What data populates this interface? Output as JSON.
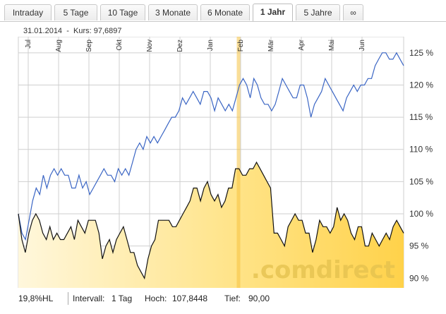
{
  "tabs": [
    {
      "label": "Intraday",
      "active": false
    },
    {
      "label": "5 Tage",
      "active": false
    },
    {
      "label": "10 Tage",
      "active": false
    },
    {
      "label": "3 Monate",
      "active": false
    },
    {
      "label": "6 Monate",
      "active": false
    },
    {
      "label": "1 Jahr",
      "active": true
    },
    {
      "label": "5 Jahre",
      "active": false
    },
    {
      "label": "∞",
      "active": false
    }
  ],
  "info": {
    "date": "31.01.2014",
    "separator": "-",
    "price_label": "Kurs:",
    "price_value": "97,6897"
  },
  "footer": {
    "hl": "19,8%HL",
    "interval_label": "Intervall:",
    "interval_value": "1 Tag",
    "high_label": "Hoch:",
    "high_value": "107,8448",
    "low_label": "Tief:",
    "low_value": "90,00"
  },
  "watermark": ".comdirect",
  "colors": {
    "blue_line": "#3a65c4",
    "black_line": "#111111",
    "fill_light": "#fff6d8",
    "fill_dark": "#ffd24a",
    "highlight_bar": "#f5c242",
    "grid": "#cfcfcf",
    "watermark": "#e3c04d"
  },
  "chart_data": {
    "type": "line",
    "x_ticks": [
      "Jul",
      "Aug",
      "Sep",
      "Okt",
      "Nov",
      "Dez",
      "Jan",
      "Feb",
      "Mär",
      "Apr",
      "Mai",
      "Jun"
    ],
    "y_ticks": [
      "90 %",
      "95 %",
      "100 %",
      "105 %",
      "110 %",
      "115 %",
      "120 %",
      "125 %"
    ],
    "ylim": [
      88.5,
      127.5
    ],
    "highlight_x": "31.01.2014",
    "series": [
      {
        "style": "blue",
        "values": [
          100,
          97,
          96,
          99,
          102,
          104,
          103,
          106,
          104,
          106,
          107,
          106,
          107,
          106,
          106,
          104,
          104,
          106,
          104,
          105,
          103,
          104,
          105,
          106,
          107,
          106,
          106,
          105,
          107,
          106,
          107,
          106,
          108,
          110,
          111,
          110,
          112,
          111,
          112,
          111,
          112,
          113,
          114,
          115,
          115,
          116,
          118,
          117,
          118,
          119,
          118,
          117,
          119,
          119,
          118,
          116,
          118,
          117,
          116,
          117,
          116,
          118,
          120,
          121,
          120,
          118,
          121,
          120,
          118,
          117,
          117,
          116,
          117,
          119,
          121,
          120,
          119,
          118,
          118,
          120,
          120,
          118,
          115,
          117,
          118,
          119,
          121,
          120,
          119,
          118,
          117,
          116,
          118,
          119,
          120,
          119,
          120,
          120,
          121,
          121,
          123,
          124,
          125,
          125,
          124,
          124,
          125,
          124,
          123
        ]
      },
      {
        "style": "black",
        "values": [
          100,
          96,
          94,
          97,
          99,
          100,
          99,
          97,
          96,
          98,
          96,
          97,
          96,
          96,
          97,
          98,
          96,
          99,
          98,
          97,
          99,
          99,
          99,
          97,
          93,
          95,
          96,
          94,
          96,
          97,
          98,
          96,
          94,
          94,
          92,
          91,
          90,
          93,
          95,
          96,
          99,
          99,
          99,
          99,
          98,
          98,
          99,
          100,
          101,
          102,
          104,
          104,
          102,
          104,
          105,
          103,
          102,
          103,
          101,
          102,
          104,
          104,
          107,
          107,
          106,
          106,
          107,
          107,
          108,
          107,
          106,
          105,
          104,
          97,
          97,
          96,
          95,
          98,
          99,
          100,
          99,
          99,
          97,
          97,
          94,
          96,
          99,
          98,
          98,
          97,
          98,
          101,
          99,
          100,
          99,
          97,
          96,
          98,
          98,
          95,
          95,
          97,
          96,
          95,
          96,
          97,
          96,
          98,
          99,
          98,
          97
        ]
      }
    ]
  }
}
